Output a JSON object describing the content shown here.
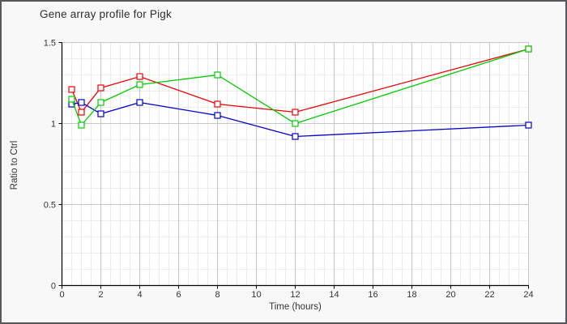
{
  "figure": {
    "border_color": "#58585c",
    "background": "#f8f8f8"
  },
  "chart_data": {
    "type": "line",
    "title": "Gene array profile for Pigk",
    "xlabel": "Time (hours)",
    "ylabel": "Ratio to Ctrl",
    "x": [
      0.5,
      1,
      2,
      4,
      8,
      12,
      24
    ],
    "series": [
      {
        "name": "red-series",
        "color": "#ee0000",
        "values": [
          1.21,
          1.07,
          1.22,
          1.29,
          1.12,
          1.07,
          1.46
        ]
      },
      {
        "name": "blue-series",
        "color": "#0000cc",
        "values": [
          1.12,
          1.13,
          1.06,
          1.13,
          1.05,
          0.92,
          0.99
        ]
      },
      {
        "name": "green-series",
        "color": "#00cc00",
        "values": [
          1.15,
          0.99,
          1.13,
          1.24,
          1.3,
          1.0,
          1.46
        ]
      }
    ],
    "xlim": [
      0,
      24
    ],
    "ylim": [
      0,
      1.5
    ],
    "x_major_ticks": [
      0,
      2,
      4,
      6,
      8,
      10,
      12,
      14,
      16,
      18,
      20,
      22,
      24
    ],
    "y_major_ticks": [
      0,
      0.5,
      1,
      1.5
    ],
    "x_minor_step": 0.5,
    "y_minor_step": 0.1,
    "grid": true,
    "legend": "none",
    "marker": "open-square",
    "plot_background": "#ffffff",
    "grid_major_color": "#c6c6c6",
    "grid_minor_color": "#ececec",
    "axis_color": "#000000",
    "text_color": "#333333"
  }
}
